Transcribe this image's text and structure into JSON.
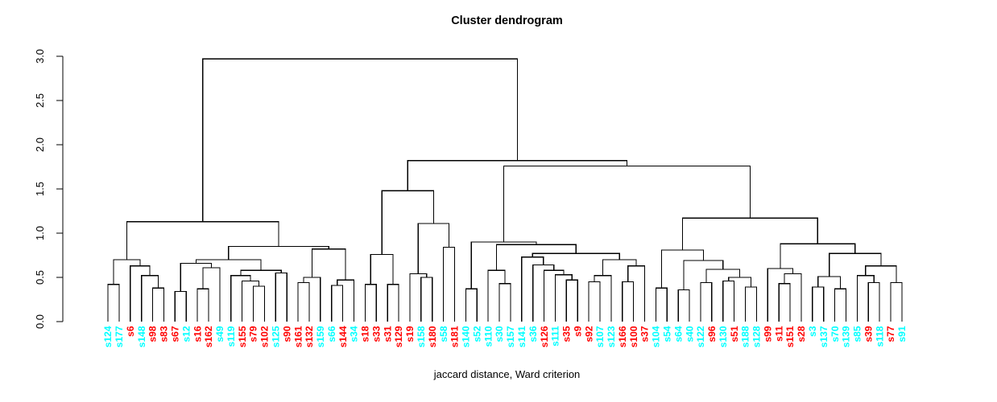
{
  "title": "Cluster dendrogram",
  "caption": "jaccard distance, Ward criterion",
  "colors": {
    "red": "#FF0000",
    "cyan": "#00FFFF",
    "line": "#000000",
    "axis": "#000000"
  },
  "chart_data": {
    "type": "dendrogram",
    "title": "Cluster dendrogram",
    "xlabel": "jaccard distance, Ward criterion",
    "ylabel": "",
    "ylim": [
      0,
      3
    ],
    "yticks": [
      0.0,
      0.5,
      1.0,
      1.5,
      2.0,
      2.5,
      3.0
    ],
    "grid": false,
    "leaf_label_orientation": "vertical",
    "leaves": [
      {
        "label": "s124",
        "color": "cyan"
      },
      {
        "label": "s177",
        "color": "cyan"
      },
      {
        "label": "s6",
        "color": "red"
      },
      {
        "label": "s148",
        "color": "cyan"
      },
      {
        "label": "s98",
        "color": "red"
      },
      {
        "label": "s83",
        "color": "red"
      },
      {
        "label": "s67",
        "color": "red"
      },
      {
        "label": "s12",
        "color": "cyan"
      },
      {
        "label": "s16",
        "color": "red"
      },
      {
        "label": "s162",
        "color": "red"
      },
      {
        "label": "s49",
        "color": "cyan"
      },
      {
        "label": "s119",
        "color": "cyan"
      },
      {
        "label": "s155",
        "color": "red"
      },
      {
        "label": "s79",
        "color": "red"
      },
      {
        "label": "s102",
        "color": "red"
      },
      {
        "label": "s125",
        "color": "cyan"
      },
      {
        "label": "s90",
        "color": "red"
      },
      {
        "label": "s161",
        "color": "red"
      },
      {
        "label": "s132",
        "color": "red"
      },
      {
        "label": "s159",
        "color": "cyan"
      },
      {
        "label": "s66",
        "color": "cyan"
      },
      {
        "label": "s144",
        "color": "red"
      },
      {
        "label": "s34",
        "color": "cyan"
      },
      {
        "label": "s18",
        "color": "red"
      },
      {
        "label": "s33",
        "color": "red"
      },
      {
        "label": "s31",
        "color": "red"
      },
      {
        "label": "s129",
        "color": "red"
      },
      {
        "label": "s19",
        "color": "red"
      },
      {
        "label": "s158",
        "color": "cyan"
      },
      {
        "label": "s180",
        "color": "red"
      },
      {
        "label": "s58",
        "color": "cyan"
      },
      {
        "label": "s181",
        "color": "red"
      },
      {
        "label": "s140",
        "color": "cyan"
      },
      {
        "label": "s52",
        "color": "cyan"
      },
      {
        "label": "s110",
        "color": "cyan"
      },
      {
        "label": "s30",
        "color": "cyan"
      },
      {
        "label": "s157",
        "color": "cyan"
      },
      {
        "label": "s141",
        "color": "cyan"
      },
      {
        "label": "s36",
        "color": "cyan"
      },
      {
        "label": "s126",
        "color": "red"
      },
      {
        "label": "s111",
        "color": "cyan"
      },
      {
        "label": "s35",
        "color": "red"
      },
      {
        "label": "s9",
        "color": "red"
      },
      {
        "label": "s92",
        "color": "red"
      },
      {
        "label": "s107",
        "color": "cyan"
      },
      {
        "label": "s123",
        "color": "cyan"
      },
      {
        "label": "s166",
        "color": "red"
      },
      {
        "label": "s100",
        "color": "red"
      },
      {
        "label": "s37",
        "color": "red"
      },
      {
        "label": "s104",
        "color": "cyan"
      },
      {
        "label": "s54",
        "color": "cyan"
      },
      {
        "label": "s64",
        "color": "cyan"
      },
      {
        "label": "s40",
        "color": "cyan"
      },
      {
        "label": "s122",
        "color": "cyan"
      },
      {
        "label": "s96",
        "color": "red"
      },
      {
        "label": "s130",
        "color": "cyan"
      },
      {
        "label": "s51",
        "color": "red"
      },
      {
        "label": "s188",
        "color": "cyan"
      },
      {
        "label": "s128",
        "color": "cyan"
      },
      {
        "label": "s99",
        "color": "red"
      },
      {
        "label": "s11",
        "color": "red"
      },
      {
        "label": "s151",
        "color": "red"
      },
      {
        "label": "s28",
        "color": "red"
      },
      {
        "label": "s3",
        "color": "cyan"
      },
      {
        "label": "s137",
        "color": "cyan"
      },
      {
        "label": "s70",
        "color": "cyan"
      },
      {
        "label": "s139",
        "color": "cyan"
      },
      {
        "label": "s85",
        "color": "cyan"
      },
      {
        "label": "s39",
        "color": "red"
      },
      {
        "label": "s118",
        "color": "cyan"
      },
      {
        "label": "s77",
        "color": "red"
      },
      {
        "label": "s91",
        "color": "cyan"
      }
    ],
    "merge_format": "hclust convention: negative value = 1-based leaf index, positive value = 1-based earlier merge index, third value = merge height",
    "merges": [
      [
        -1,
        -2,
        0.42
      ],
      [
        -5,
        -6,
        0.38
      ],
      [
        -4,
        2,
        0.52
      ],
      [
        -3,
        3,
        0.63
      ],
      [
        1,
        4,
        0.7
      ],
      [
        -7,
        -8,
        0.34
      ],
      [
        -9,
        -10,
        0.37
      ],
      [
        7,
        -11,
        0.61
      ],
      [
        6,
        8,
        0.66
      ],
      [
        -14,
        -15,
        0.4
      ],
      [
        -13,
        10,
        0.46
      ],
      [
        -12,
        11,
        0.52
      ],
      [
        -16,
        -17,
        0.55
      ],
      [
        12,
        13,
        0.58
      ],
      [
        9,
        14,
        0.7
      ],
      [
        -18,
        -19,
        0.44
      ],
      [
        16,
        -20,
        0.5
      ],
      [
        -21,
        -22,
        0.41
      ],
      [
        18,
        -23,
        0.47
      ],
      [
        17,
        19,
        0.82
      ],
      [
        15,
        20,
        0.85
      ],
      [
        5,
        21,
        1.13
      ],
      [
        -24,
        -25,
        0.42
      ],
      [
        -26,
        -27,
        0.42
      ],
      [
        23,
        24,
        0.76
      ],
      [
        -29,
        -30,
        0.5
      ],
      [
        -28,
        26,
        0.54
      ],
      [
        -31,
        -32,
        0.84
      ],
      [
        27,
        28,
        1.11
      ],
      [
        25,
        29,
        1.48
      ],
      [
        -33,
        -34,
        0.37
      ],
      [
        -36,
        -37,
        0.43
      ],
      [
        -35,
        32,
        0.58
      ],
      [
        -42,
        -43,
        0.47
      ],
      [
        -41,
        34,
        0.53
      ],
      [
        -40,
        35,
        0.58
      ],
      [
        -39,
        36,
        0.64
      ],
      [
        -38,
        37,
        0.73
      ],
      [
        -44,
        -45,
        0.45
      ],
      [
        39,
        -46,
        0.52
      ],
      [
        -47,
        -48,
        0.45
      ],
      [
        41,
        -49,
        0.63
      ],
      [
        40,
        42,
        0.7
      ],
      [
        38,
        43,
        0.77
      ],
      [
        33,
        44,
        0.87
      ],
      [
        31,
        45,
        0.9
      ],
      [
        -50,
        -51,
        0.38
      ],
      [
        -52,
        -53,
        0.36
      ],
      [
        -54,
        -55,
        0.44
      ],
      [
        -56,
        -57,
        0.46
      ],
      [
        -58,
        -59,
        0.39
      ],
      [
        50,
        51,
        0.5
      ],
      [
        49,
        52,
        0.59
      ],
      [
        48,
        53,
        0.69
      ],
      [
        47,
        54,
        0.81
      ],
      [
        -61,
        -62,
        0.43
      ],
      [
        56,
        -63,
        0.54
      ],
      [
        -60,
        57,
        0.6
      ],
      [
        -64,
        -65,
        0.39
      ],
      [
        -66,
        -67,
        0.37
      ],
      [
        59,
        60,
        0.51
      ],
      [
        -69,
        -70,
        0.44
      ],
      [
        -68,
        62,
        0.52
      ],
      [
        -71,
        -72,
        0.44
      ],
      [
        63,
        64,
        0.63
      ],
      [
        61,
        65,
        0.77
      ],
      [
        58,
        66,
        0.88
      ],
      [
        55,
        67,
        1.17
      ],
      [
        46,
        68,
        1.76
      ],
      [
        30,
        69,
        1.82
      ],
      [
        22,
        70,
        2.97
      ]
    ]
  }
}
